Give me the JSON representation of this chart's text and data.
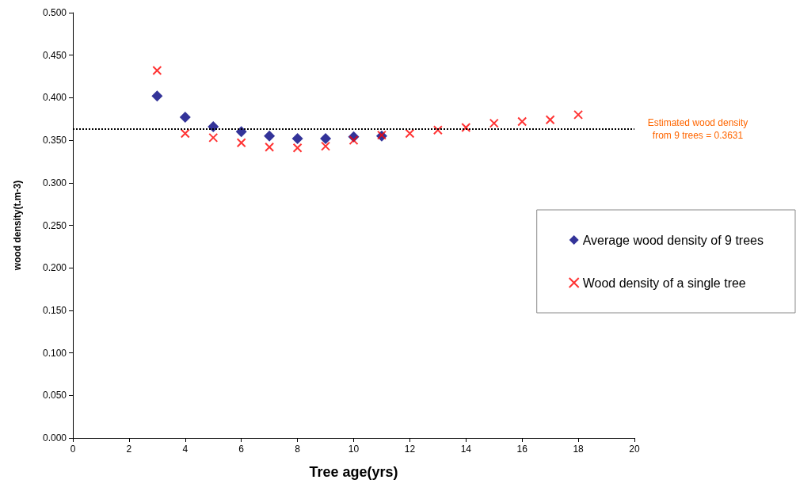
{
  "chart_data": {
    "type": "scatter",
    "xlabel": "Tree age(yrs)",
    "ylabel": "wood density(t.m-3)",
    "series": [
      {
        "name": "Average wood density of 9 trees",
        "color": "#000080",
        "marker": "diamond",
        "x": [
          3,
          4,
          5,
          6,
          7,
          8,
          9,
          10,
          11
        ],
        "values": [
          0.402,
          0.377,
          0.366,
          0.36,
          0.355,
          0.352,
          0.352,
          0.354,
          0.355
        ]
      },
      {
        "name": "Wood density of a single tree",
        "color": "#ff0000",
        "marker": "cross",
        "x": [
          3,
          4,
          5,
          6,
          7,
          8,
          9,
          10,
          11,
          12,
          13,
          14,
          15,
          16,
          17,
          18
        ],
        "values": [
          0.432,
          0.358,
          0.353,
          0.347,
          0.342,
          0.341,
          0.343,
          0.35,
          0.356,
          0.358,
          0.362,
          0.365,
          0.37,
          0.372,
          0.374,
          0.38
        ]
      }
    ],
    "xlim": [
      0,
      20
    ],
    "xticks": [
      0,
      2,
      4,
      6,
      8,
      10,
      12,
      14,
      16,
      18,
      20
    ],
    "ylim": [
      0,
      0.5
    ],
    "yticks": [
      {
        "value": 0,
        "label": "0.000"
      },
      {
        "value": 0.05,
        "label": "0.050"
      },
      {
        "value": 0.1,
        "label": "0.100"
      },
      {
        "value": 0.15,
        "label": "0.150"
      },
      {
        "value": 0.2,
        "label": "0.200"
      },
      {
        "value": 0.25,
        "label": "0.250"
      },
      {
        "value": 0.3,
        "label": "0.300"
      },
      {
        "value": 0.35,
        "label": "0.350"
      },
      {
        "value": 0.4,
        "label": "0.400"
      },
      {
        "value": 0.45,
        "label": "0.450"
      },
      {
        "value": 0.5,
        "label": "0.500"
      }
    ],
    "ref_lines": [
      {
        "axis": "y",
        "value": 0.3631,
        "label": "Estimated wood density\nfrom 9 trees = 0.3631",
        "color": "#000000",
        "line_style": "dotted"
      }
    ],
    "grid": false,
    "legend": "right"
  }
}
